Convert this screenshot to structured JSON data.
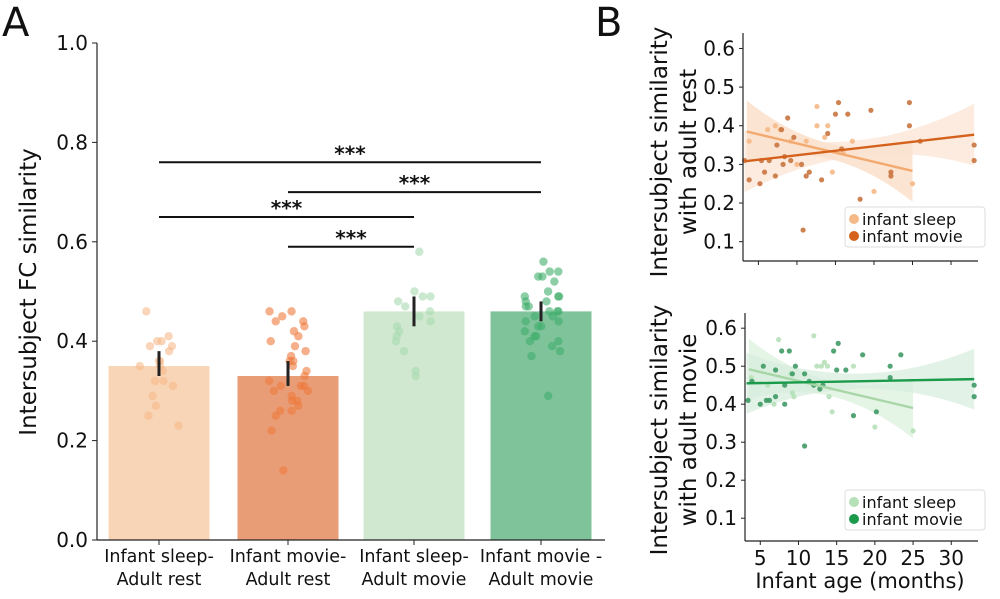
{
  "chart_data": [
    {
      "panel": "A",
      "type": "bar",
      "title": "",
      "xlabel": "",
      "ylabel": "Intersubject FC similarity",
      "ylim": [
        0,
        1.0
      ],
      "yticks": [
        "0.0",
        "0.2",
        "0.4",
        "0.6",
        "0.8",
        "1.0"
      ],
      "ytick_values": [
        0,
        0.2,
        0.4,
        0.6,
        0.8,
        1.0
      ],
      "categories": [
        {
          "line1": "Infant sleep-",
          "line2": "Adult rest"
        },
        {
          "line1": "Infant movie-",
          "line2": "Adult rest"
        },
        {
          "line1": "Infant sleep-",
          "line2": "Adult movie"
        },
        {
          "line1": "Infant movie -",
          "line2": "Adult movie"
        }
      ],
      "values": [
        0.35,
        0.33,
        0.46,
        0.46
      ],
      "error_low": [
        0.33,
        0.31,
        0.43,
        0.44
      ],
      "error_high": [
        0.38,
        0.36,
        0.49,
        0.48
      ],
      "bar_colors": [
        "#f8d5b6",
        "#e99d76",
        "#cfe8cf",
        "#7fc39b"
      ],
      "point_colors": [
        "#f7b98a",
        "#ef7a3c",
        "#a8dbb0",
        "#3fae6a"
      ],
      "points": [
        [
          0.46,
          0.41,
          0.4,
          0.4,
          0.39,
          0.39,
          0.38,
          0.36,
          0.36,
          0.35,
          0.35,
          0.34,
          0.32,
          0.32,
          0.31,
          0.29,
          0.27,
          0.25,
          0.23
        ],
        [
          0.46,
          0.46,
          0.45,
          0.44,
          0.44,
          0.43,
          0.42,
          0.41,
          0.4,
          0.39,
          0.38,
          0.37,
          0.36,
          0.36,
          0.35,
          0.34,
          0.33,
          0.32,
          0.31,
          0.31,
          0.31,
          0.3,
          0.3,
          0.29,
          0.28,
          0.28,
          0.27,
          0.26,
          0.26,
          0.25,
          0.22,
          0.14
        ],
        [
          0.58,
          0.5,
          0.49,
          0.49,
          0.48,
          0.47,
          0.46,
          0.45,
          0.44,
          0.43,
          0.42,
          0.41,
          0.4,
          0.38,
          0.34,
          0.33
        ],
        [
          0.56,
          0.54,
          0.54,
          0.53,
          0.53,
          0.52,
          0.5,
          0.49,
          0.49,
          0.49,
          0.48,
          0.48,
          0.47,
          0.47,
          0.46,
          0.46,
          0.46,
          0.45,
          0.45,
          0.44,
          0.44,
          0.43,
          0.43,
          0.42,
          0.41,
          0.41,
          0.4,
          0.4,
          0.39,
          0.38,
          0.37,
          0.29
        ]
      ],
      "significance": [
        {
          "from": 0,
          "to": 3,
          "y": 0.76,
          "label": "***"
        },
        {
          "from": 1,
          "to": 3,
          "y": 0.7,
          "label": "***"
        },
        {
          "from": 0,
          "to": 2,
          "y": 0.65,
          "label": "***"
        },
        {
          "from": 1,
          "to": 2,
          "y": 0.59,
          "label": "***"
        }
      ]
    },
    {
      "panel": "B",
      "subplot": "top",
      "type": "scatter",
      "ylabel_line1": "Intersubject similarity",
      "ylabel_line2": "with adult rest",
      "xlabel": "",
      "xlim": [
        3,
        33.5
      ],
      "ylim": [
        0.05,
        0.64
      ],
      "yticks": [
        "0.1",
        "0.2",
        "0.3",
        "0.4",
        "0.5",
        "0.6"
      ],
      "ytick_values": [
        0.1,
        0.2,
        0.3,
        0.4,
        0.5,
        0.6
      ],
      "xtick_values": [
        5,
        10,
        15,
        20,
        25,
        30
      ],
      "legend": {
        "position": "bottom-right",
        "entries": [
          "infant sleep",
          "infant movie"
        ]
      },
      "series": [
        {
          "name": "infant sleep",
          "color": "#f5b987",
          "line_color": "#f3aa70",
          "fit": {
            "x": [
              3.5,
              25
            ],
            "y": [
              0.385,
              0.283
            ]
          },
          "ci_color": "#fbd9bf",
          "points": [
            [
              3.8,
              0.36
            ],
            [
              6.2,
              0.39
            ],
            [
              7.2,
              0.4
            ],
            [
              7.8,
              0.39
            ],
            [
              9.2,
              0.36
            ],
            [
              10.0,
              0.3
            ],
            [
              11.2,
              0.36
            ],
            [
              12.6,
              0.45
            ],
            [
              12.6,
              0.4
            ],
            [
              13.6,
              0.37
            ],
            [
              14.0,
              0.4
            ],
            [
              14.6,
              0.28
            ],
            [
              16.0,
              0.33
            ],
            [
              17.2,
              0.36
            ],
            [
              20.0,
              0.23
            ],
            [
              25.0,
              0.25
            ]
          ]
        },
        {
          "name": "infant movie",
          "color": "#c9743f",
          "line_color": "#d4621c",
          "fit": {
            "x": [
              3.2,
              33
            ],
            "y": [
              0.308,
              0.377
            ]
          },
          "ci_color": "#fbe2d0",
          "points": [
            [
              3.2,
              0.31
            ],
            [
              3.8,
              0.26
            ],
            [
              5.2,
              0.25
            ],
            [
              5.4,
              0.31
            ],
            [
              5.8,
              0.28
            ],
            [
              6.4,
              0.31
            ],
            [
              7.2,
              0.27
            ],
            [
              7.4,
              0.35
            ],
            [
              8.0,
              0.39
            ],
            [
              8.2,
              0.3
            ],
            [
              8.4,
              0.32
            ],
            [
              8.8,
              0.42
            ],
            [
              9.2,
              0.31
            ],
            [
              9.6,
              0.37
            ],
            [
              10.6,
              0.3
            ],
            [
              10.8,
              0.13
            ],
            [
              11.2,
              0.27
            ],
            [
              11.6,
              0.28
            ],
            [
              13.2,
              0.26
            ],
            [
              14.0,
              0.38
            ],
            [
              15.0,
              0.43
            ],
            [
              15.4,
              0.46
            ],
            [
              15.8,
              0.34
            ],
            [
              16.6,
              0.43
            ],
            [
              18.2,
              0.21
            ],
            [
              19.6,
              0.44
            ],
            [
              22.2,
              0.28
            ],
            [
              22.2,
              0.27
            ],
            [
              24.6,
              0.46
            ],
            [
              24.6,
              0.4
            ],
            [
              26.0,
              0.36
            ],
            [
              33.0,
              0.35
            ],
            [
              33.0,
              0.31
            ]
          ]
        }
      ]
    },
    {
      "panel": "B",
      "subplot": "bottom",
      "type": "scatter",
      "ylabel_line1": "Intersubject similarity",
      "ylabel_line2": "with adult movie",
      "xlabel": "Infant age (months)",
      "xlim": [
        3,
        33.5
      ],
      "ylim": [
        0.04,
        0.64
      ],
      "yticks": [
        "0.1",
        "0.2",
        "0.3",
        "0.4",
        "0.5",
        "0.6"
      ],
      "ytick_values": [
        0.1,
        0.2,
        0.3,
        0.4,
        0.5,
        0.6
      ],
      "xticks": [
        "5",
        "10",
        "15",
        "20",
        "25",
        "30"
      ],
      "xtick_values": [
        5,
        10,
        15,
        20,
        25,
        30
      ],
      "legend": {
        "position": "bottom-right",
        "entries": [
          "infant sleep",
          "infant movie"
        ]
      },
      "series": [
        {
          "name": "infant sleep",
          "color": "#b6e0b8",
          "line_color": "#a8d6a6",
          "fit": {
            "x": [
              3.5,
              25
            ],
            "y": [
              0.492,
              0.39
            ]
          },
          "ci_color": "#d9efda",
          "points": [
            [
              3.8,
              0.47
            ],
            [
              4.0,
              0.46
            ],
            [
              6.0,
              0.45
            ],
            [
              6.8,
              0.4
            ],
            [
              7.4,
              0.57
            ],
            [
              9.0,
              0.48
            ],
            [
              9.2,
              0.43
            ],
            [
              9.4,
              0.42
            ],
            [
              12.0,
              0.58
            ],
            [
              12.4,
              0.5
            ],
            [
              13.0,
              0.5
            ],
            [
              13.4,
              0.51
            ],
            [
              13.8,
              0.5
            ],
            [
              14.0,
              0.42
            ],
            [
              14.4,
              0.38
            ],
            [
              17.2,
              0.5
            ],
            [
              20.0,
              0.34
            ],
            [
              25.0,
              0.33
            ]
          ]
        },
        {
          "name": "infant movie",
          "color": "#3f9a66",
          "line_color": "#1a9a4a",
          "fit": {
            "x": [
              3.2,
              33
            ],
            "y": [
              0.455,
              0.466
            ]
          },
          "ci_color": "#d6eddd",
          "points": [
            [
              3.4,
              0.41
            ],
            [
              3.9,
              0.46
            ],
            [
              5.0,
              0.4
            ],
            [
              5.4,
              0.5
            ],
            [
              5.8,
              0.41
            ],
            [
              6.2,
              0.41
            ],
            [
              7.0,
              0.42
            ],
            [
              7.0,
              0.49
            ],
            [
              7.8,
              0.54
            ],
            [
              8.2,
              0.45
            ],
            [
              8.2,
              0.4
            ],
            [
              8.8,
              0.54
            ],
            [
              9.2,
              0.48
            ],
            [
              9.6,
              0.5
            ],
            [
              10.8,
              0.48
            ],
            [
              10.8,
              0.29
            ],
            [
              11.4,
              0.46
            ],
            [
              12.0,
              0.45
            ],
            [
              12.8,
              0.44
            ],
            [
              13.2,
              0.45
            ],
            [
              14.6,
              0.54
            ],
            [
              15.0,
              0.49
            ],
            [
              15.2,
              0.56
            ],
            [
              16.2,
              0.49
            ],
            [
              17.2,
              0.37
            ],
            [
              18.4,
              0.53
            ],
            [
              20.2,
              0.38
            ],
            [
              22.0,
              0.5
            ],
            [
              22.0,
              0.47
            ],
            [
              23.4,
              0.53
            ],
            [
              33.0,
              0.45
            ],
            [
              33.0,
              0.42
            ]
          ]
        }
      ]
    }
  ]
}
